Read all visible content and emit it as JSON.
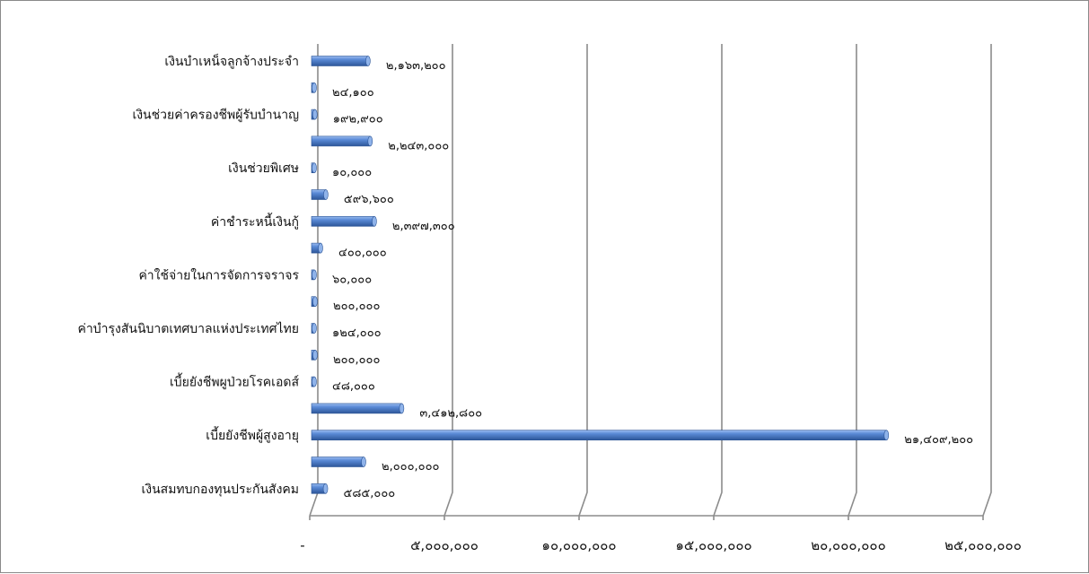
{
  "chart_data": {
    "type": "bar",
    "orientation": "horizontal",
    "rows": [
      {
        "label": "เงินบำเหน็จลูกจ้างประจำ",
        "value": 2163200,
        "value_text": "๒,๑๖๓,๒๐๐"
      },
      {
        "label": "",
        "value": 24100,
        "value_text": "๒๔,๑๐๐"
      },
      {
        "label": "เงินช่วยค่าครองชีพผู้รับบำนาญ",
        "value": 192900,
        "value_text": "๑๙๒,๙๐๐"
      },
      {
        "label": "",
        "value": 2243000,
        "value_text": "๒,๒๔๓,๐๐๐"
      },
      {
        "label": "เงินช่วยพิเศษ",
        "value": 10000,
        "value_text": "๑๐,๐๐๐"
      },
      {
        "label": "",
        "value": 596600,
        "value_text": "๕๙๖,๖๐๐"
      },
      {
        "label": "ค่าชำระหนี้เงินกู้",
        "value": 2397300,
        "value_text": "๒,๓๙๗,๓๐๐"
      },
      {
        "label": "",
        "value": 400000,
        "value_text": "๔๐๐,๐๐๐"
      },
      {
        "label": "ค่าใช้จ่ายในการจัดการจราจร",
        "value": 60000,
        "value_text": "๖๐,๐๐๐"
      },
      {
        "label": "",
        "value": 200000,
        "value_text": "๒๐๐,๐๐๐"
      },
      {
        "label": "ค่าบำรุงสันนิบาตเทศบาลแห่งประเทศไทย",
        "value": 124000,
        "value_text": "๑๒๔,๐๐๐"
      },
      {
        "label": "",
        "value": 200000,
        "value_text": "๒๐๐,๐๐๐"
      },
      {
        "label": "เบี้ยยังชีพผูป่วยโรคเอดส์",
        "value": 48000,
        "value_text": "๔๘,๐๐๐"
      },
      {
        "label": "",
        "value": 3412800,
        "value_text": "๓,๔๑๒,๘๐๐"
      },
      {
        "label": "เบี้ยยังชีพผู้สูงอายุ",
        "value": 21409200,
        "value_text": "๒๑,๔๐๙,๒๐๐"
      },
      {
        "label": "",
        "value": 2000000,
        "value_text": "๒,๐๐๐,๐๐๐"
      },
      {
        "label": "เงินสมทบกองทุนประกันสังคม",
        "value": 585000,
        "value_text": "๕๘๕,๐๐๐"
      }
    ],
    "xlim": [
      0,
      25000000
    ],
    "x_ticks": [
      0,
      5000000,
      10000000,
      15000000,
      20000000,
      25000000
    ],
    "x_tick_labels": [
      "-",
      "๕,๐๐๐,๐๐๐",
      "๑๐,๐๐๐,๐๐๐",
      "๑๕,๐๐๐,๐๐๐",
      "๒๐,๐๐๐,๐๐๐",
      "๒๕,๐๐๐,๐๐๐"
    ],
    "title": "",
    "xlabel": "",
    "ylabel": "",
    "grid": true,
    "style": "3d",
    "colors": {
      "bar": "#4a7cc9",
      "bar_dark": "#2c5597",
      "bar_light": "#8fb3ea",
      "grid": "#8c8c8c"
    }
  }
}
